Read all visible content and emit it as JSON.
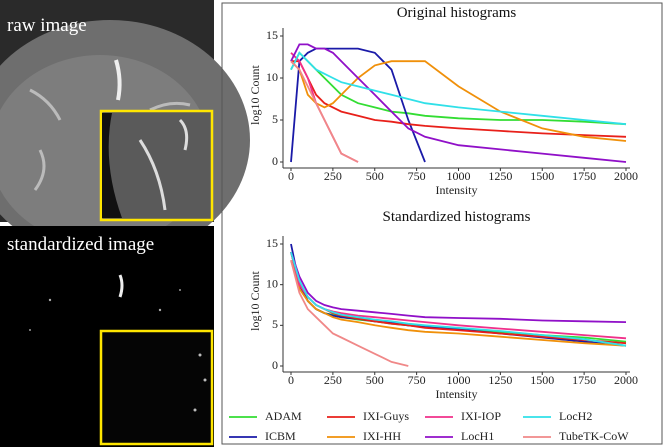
{
  "panels": [
    {
      "label": "raw image"
    },
    {
      "label": "standardized image"
    }
  ],
  "chart_data": [
    {
      "type": "line",
      "title": "Original histograms",
      "xlabel": "Intensity",
      "ylabel": "log10 Count",
      "x": [
        0,
        50,
        100,
        150,
        200,
        250,
        300,
        400,
        500,
        600,
        700,
        800,
        1000,
        1250,
        1500,
        1750,
        2000
      ],
      "xlim": [
        0,
        2000
      ],
      "ylim": [
        0,
        15
      ],
      "xticks": [
        0,
        250,
        500,
        750,
        1000,
        1250,
        1500,
        1750,
        2000
      ],
      "yticks": [
        0,
        5,
        10,
        15
      ],
      "series": [
        {
          "color": "#33dd33",
          "values": [
            11,
            13,
            12,
            11,
            10,
            9,
            8,
            7,
            6.5,
            6,
            5.8,
            5.5,
            5.2,
            5,
            5,
            4.8,
            4.5
          ]
        },
        {
          "color": "#1a1aa8",
          "values": [
            0,
            12,
            13,
            13.5,
            13.5,
            13.5,
            13.5,
            13.5,
            13,
            11,
            5,
            0,
            null,
            null,
            null,
            null,
            null
          ]
        },
        {
          "color": "#e8201a",
          "values": [
            12,
            12,
            10,
            8,
            7,
            6.5,
            6,
            5.5,
            5,
            4.8,
            4.5,
            4.3,
            4,
            3.7,
            3.4,
            3.2,
            3
          ]
        },
        {
          "color": "#f0900a",
          "values": [
            12,
            11,
            8,
            7,
            6.5,
            7,
            8,
            10,
            11.5,
            12,
            12,
            12,
            9,
            6,
            4,
            3,
            2.5
          ]
        },
        {
          "color": "#f0308a",
          "values": [
            13,
            12,
            10,
            7,
            5,
            3,
            1,
            0,
            null,
            null,
            null,
            null,
            null,
            null,
            null,
            null,
            null
          ]
        },
        {
          "color": "#9010c8",
          "values": [
            12,
            14,
            14,
            13.5,
            13.5,
            13,
            12,
            10,
            8,
            6,
            4,
            3,
            2,
            1.5,
            1,
            0.5,
            0
          ]
        },
        {
          "color": "#30e0e8",
          "values": [
            11,
            13,
            12,
            11,
            10.5,
            10,
            9.5,
            9,
            8.5,
            8,
            7.5,
            7,
            6.5,
            6,
            5.5,
            5,
            4.5
          ]
        },
        {
          "color": "#f08888",
          "values": [
            12,
            11,
            9,
            7,
            5,
            3,
            1,
            0,
            null,
            null,
            null,
            null,
            null,
            null,
            null,
            null,
            null
          ]
        }
      ]
    },
    {
      "type": "line",
      "title": "Standardized histograms",
      "xlabel": "Intensity",
      "ylabel": "log10 Count",
      "x": [
        0,
        50,
        100,
        150,
        200,
        250,
        300,
        400,
        500,
        600,
        700,
        800,
        1000,
        1250,
        1500,
        1750,
        2000
      ],
      "xlim": [
        0,
        2000
      ],
      "ylim": [
        0,
        15
      ],
      "xticks": [
        0,
        250,
        500,
        750,
        1000,
        1250,
        1500,
        1750,
        2000
      ],
      "yticks": [
        0,
        5,
        10,
        15
      ],
      "series": [
        {
          "name": "ADAM",
          "color": "#33dd33",
          "values": [
            14,
            10,
            8,
            7,
            6.5,
            6.3,
            6,
            5.7,
            5.5,
            5.2,
            5,
            4.8,
            4.5,
            4.2,
            3.8,
            3.5,
            3
          ]
        },
        {
          "name": "ICBM",
          "color": "#1a1aa8",
          "values": [
            15,
            10,
            8,
            7,
            6.5,
            6.2,
            6,
            5.8,
            5.5,
            5.3,
            5,
            4.8,
            4.5,
            4,
            3.5,
            3,
            2.5
          ]
        },
        {
          "name": "IXI-Guys",
          "color": "#e8201a",
          "values": [
            14,
            10,
            8.5,
            7.5,
            7,
            6.5,
            6.2,
            5.8,
            5.5,
            5.2,
            5,
            4.7,
            4.4,
            4,
            3.6,
            3.2,
            2.8
          ]
        },
        {
          "name": "IXI-HH",
          "color": "#f0900a",
          "values": [
            13,
            9.5,
            8,
            7,
            6.5,
            6,
            5.7,
            5.4,
            5,
            4.7,
            4.4,
            4.2,
            4,
            3.6,
            3.2,
            2.8,
            2.5
          ]
        },
        {
          "name": "IXI-IOP",
          "color": "#f0308a",
          "values": [
            14,
            10,
            8.5,
            7.5,
            7,
            6.7,
            6.5,
            6.2,
            6,
            5.8,
            5.6,
            5.4,
            5,
            4.6,
            4.2,
            3.8,
            3.4
          ]
        },
        {
          "name": "LocH1",
          "color": "#9010c8",
          "values": [
            14,
            11,
            9,
            8,
            7.5,
            7.2,
            7,
            6.8,
            6.6,
            6.4,
            6.2,
            6,
            5.9,
            5.8,
            5.6,
            5.5,
            5.4
          ]
        },
        {
          "name": "LocH2",
          "color": "#30e0e8",
          "values": [
            14,
            10.5,
            8.5,
            7.5,
            7,
            6.6,
            6.3,
            6,
            5.7,
            5.5,
            5.2,
            5,
            4.7,
            4.3,
            3.8,
            3.3,
            2.5
          ]
        },
        {
          "name": "TubeTK-CoW",
          "color": "#f08888",
          "values": [
            13,
            9,
            7,
            6,
            5,
            4,
            3.5,
            2.5,
            1.5,
            0.5,
            0,
            null,
            null,
            null,
            null,
            null,
            null
          ]
        }
      ]
    }
  ]
}
